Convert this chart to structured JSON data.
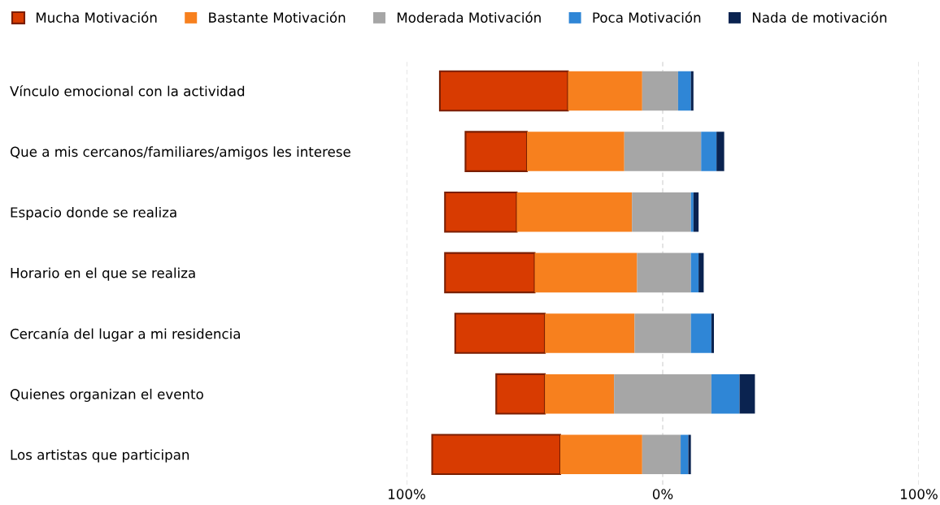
{
  "chart_data": {
    "type": "bar",
    "orientation": "horizontal",
    "categories": [
      "Vínculo emocional con la actividad",
      "Que a mis cercanos/familiares/amigos les interese",
      "Espacio donde se realiza",
      "Horario en el que se realiza",
      "Cercanía del lugar a mi residencia",
      "Quienes organizan el evento",
      "Los artistas que participan"
    ],
    "series": [
      {
        "name": "Mucha Motivación",
        "color": "#d83b01",
        "base": [
          -87,
          -77,
          -85,
          -85,
          -81,
          -65,
          -90
        ],
        "values": [
          50,
          24,
          28,
          35,
          35,
          19,
          50
        ]
      },
      {
        "name": "Bastante Motivación",
        "color": "#f7801e",
        "base": [
          -37,
          -53,
          -57,
          -50,
          -46,
          -46,
          -40
        ],
        "values": [
          29,
          38,
          45,
          40,
          35,
          27,
          32
        ]
      },
      {
        "name": "Moderada Motivación",
        "color": "#a6a6a6",
        "base": [
          -8,
          -15,
          -12,
          -10,
          -11,
          -19,
          -8
        ],
        "values": [
          14,
          30,
          23,
          21,
          22,
          38,
          15
        ]
      },
      {
        "name": "Poca Motivación",
        "color": "#2f86d6",
        "base": [
          6,
          15,
          11,
          11,
          11,
          19,
          7
        ],
        "values": [
          5,
          6,
          1,
          3,
          8,
          11,
          3
        ]
      },
      {
        "name": "Nada de motivación",
        "color": "#0a2350",
        "base": [
          11,
          21,
          12,
          14,
          19,
          30,
          10
        ],
        "values": [
          1,
          3,
          2,
          2,
          1,
          6,
          1
        ]
      }
    ],
    "xlim": [
      -100,
      100
    ],
    "xticks": [
      {
        "value": -100,
        "label": "100%"
      },
      {
        "value": 0,
        "label": "0%"
      },
      {
        "value": 100,
        "label": "100%"
      }
    ],
    "grid": "x",
    "legend": "top"
  }
}
